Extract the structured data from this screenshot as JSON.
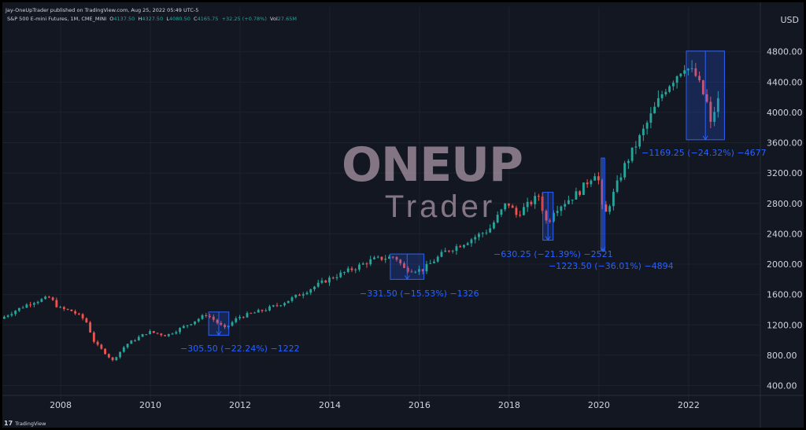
{
  "header": {
    "publisher": "Jay-OneUpTrader published on TradingView.com, Aug 25, 2022 05:49 UTC-5",
    "symbol": "S&P 500 E-mini Futures, 1M, CME_MINI",
    "open_label": "O",
    "open": "4137.50",
    "high_label": "H",
    "high": "4327.50",
    "low_label": "L",
    "low": "4080.50",
    "close_label": "C",
    "close": "4165.75",
    "change": "+32.25 (+0.78%)",
    "vol_label": "Vol",
    "vol": "27.65M"
  },
  "currency": "USD",
  "watermark": {
    "line1": "ONE",
    "line1b": "UP",
    "line2": "Trader"
  },
  "footer": {
    "logo_text": "TradingView"
  },
  "colors": {
    "up": "#26a69a",
    "down": "#ef5350",
    "background": "#131722",
    "grid": "#1e222d",
    "axis_text": "#d1d4dc",
    "measure_box": "#2962ff",
    "measure_text": "#2962ff"
  },
  "chart_data": {
    "type": "candlestick",
    "title": "S&P 500 E-mini Futures, 1M, CME_MINI",
    "x_ticks": [
      "2008",
      "2010",
      "2012",
      "2014",
      "2016",
      "2018",
      "2020",
      "2022"
    ],
    "y_ticks": [
      "4800.00",
      "4400.00",
      "4000.00",
      "3600.00",
      "3200.00",
      "2800.00",
      "2400.00",
      "2000.00",
      "1600.00",
      "1200.00",
      "800.00",
      "400.00"
    ],
    "ylim": [
      100,
      5200
    ],
    "xlim": [
      2006.7,
      2023.6
    ],
    "grid": true,
    "anchors": [
      [
        2006.7,
        1280
      ],
      [
        2007.0,
        1380
      ],
      [
        2007.4,
        1500
      ],
      [
        2007.8,
        1560
      ],
      [
        2008.0,
        1420
      ],
      [
        2008.3,
        1380
      ],
      [
        2008.6,
        1260
      ],
      [
        2008.8,
        960
      ],
      [
        2009.0,
        850
      ],
      [
        2009.2,
        730
      ],
      [
        2009.5,
        940
      ],
      [
        2010.0,
        1110
      ],
      [
        2010.4,
        1060
      ],
      [
        2010.8,
        1180
      ],
      [
        2011.3,
        1340
      ],
      [
        2011.7,
        1150
      ],
      [
        2012.0,
        1300
      ],
      [
        2012.6,
        1400
      ],
      [
        2013.0,
        1490
      ],
      [
        2013.5,
        1640
      ],
      [
        2014.0,
        1800
      ],
      [
        2014.6,
        1950
      ],
      [
        2015.0,
        2060
      ],
      [
        2015.5,
        2100
      ],
      [
        2015.7,
        1940
      ],
      [
        2016.1,
        1920
      ],
      [
        2016.6,
        2160
      ],
      [
        2017.0,
        2270
      ],
      [
        2017.6,
        2460
      ],
      [
        2018.0,
        2820
      ],
      [
        2018.2,
        2650
      ],
      [
        2018.7,
        2900
      ],
      [
        2018.9,
        2500
      ],
      [
        2019.0,
        2700
      ],
      [
        2019.6,
        2950
      ],
      [
        2020.0,
        3240
      ],
      [
        2020.15,
        2600
      ],
      [
        2020.25,
        2750
      ],
      [
        2020.6,
        3280
      ],
      [
        2021.0,
        3720
      ],
      [
        2021.5,
        4300
      ],
      [
        2021.95,
        4620
      ],
      [
        2022.2,
        4480
      ],
      [
        2022.45,
        4120
      ],
      [
        2022.55,
        3780
      ],
      [
        2022.65,
        4150
      ]
    ],
    "measures": [
      {
        "label": "−305.50 (−22.24%) −1222",
        "x0": 2011.3,
        "x1": 2011.75,
        "high": 1370,
        "low": 1064
      },
      {
        "label": "−331.50 (−15.53%) −1326",
        "x0": 2015.35,
        "x1": 2016.1,
        "high": 2134,
        "low": 1800
      },
      {
        "label": "−630.25 (−21.39%) −2521",
        "x0": 2018.75,
        "x1": 2018.98,
        "high": 2947,
        "low": 2316
      },
      {
        "label": "−1223.50 (−36.01%) −4894",
        "x0": 2020.05,
        "x1": 2020.13,
        "high": 3398,
        "low": 2174
      },
      {
        "label": "−1169.25 (−24.32%) −4677",
        "x0": 2021.95,
        "x1": 2022.8,
        "high": 4808,
        "low": 3639
      }
    ]
  }
}
